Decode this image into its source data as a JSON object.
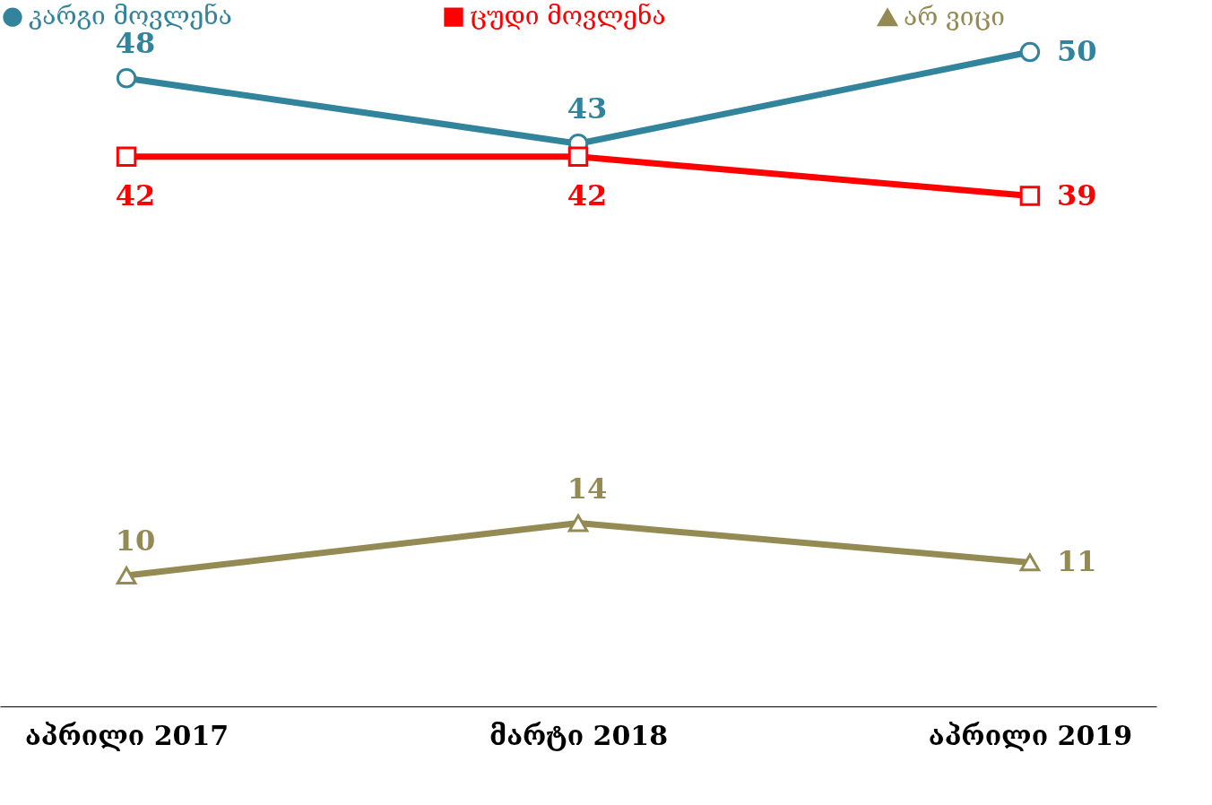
{
  "chart_data": {
    "type": "line",
    "categories": [
      "აპრილი 2017",
      "მარტი 2018",
      "აპრილი 2019"
    ],
    "series": [
      {
        "name": "კარგი მოვლენა",
        "color": "#31849b",
        "marker": "circle",
        "values": [
          48,
          43,
          50
        ]
      },
      {
        "name": "ცუდი მოვლენა",
        "color": "#ff0000",
        "marker": "square",
        "values": [
          42,
          42,
          39
        ]
      },
      {
        "name": "არ ვიცი",
        "color": "#948a54",
        "marker": "triangle",
        "values": [
          10,
          14,
          11
        ]
      }
    ],
    "data_labels": true,
    "legend": "top",
    "grid": false,
    "line_style": "solid"
  }
}
